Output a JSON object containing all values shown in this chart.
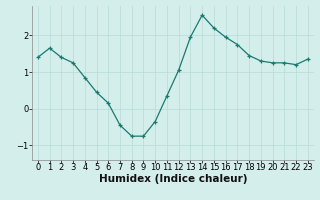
{
  "x": [
    0,
    1,
    2,
    3,
    4,
    5,
    6,
    7,
    8,
    9,
    10,
    11,
    12,
    13,
    14,
    15,
    16,
    17,
    18,
    19,
    20,
    21,
    22,
    23
  ],
  "y": [
    1.4,
    1.65,
    1.4,
    1.25,
    0.85,
    0.45,
    0.15,
    -0.45,
    -0.75,
    -0.75,
    -0.35,
    0.35,
    1.05,
    1.95,
    2.55,
    2.2,
    1.95,
    1.75,
    1.45,
    1.3,
    1.25,
    1.25,
    1.2,
    1.35
  ],
  "xlabel": "Humidex (Indice chaleur)",
  "ylim": [
    -1.4,
    2.8
  ],
  "xlim": [
    -0.5,
    23.5
  ],
  "yticks": [
    -1,
    0,
    1,
    2
  ],
  "xticks": [
    0,
    1,
    2,
    3,
    4,
    5,
    6,
    7,
    8,
    9,
    10,
    11,
    12,
    13,
    14,
    15,
    16,
    17,
    18,
    19,
    20,
    21,
    22,
    23
  ],
  "line_color": "#1a7a6e",
  "marker_color": "#1a7a6e",
  "bg_color": "#d4eeec",
  "grid_color": "#b8dbd8",
  "xlabel_fontsize": 7.5,
  "tick_fontsize": 6.0
}
